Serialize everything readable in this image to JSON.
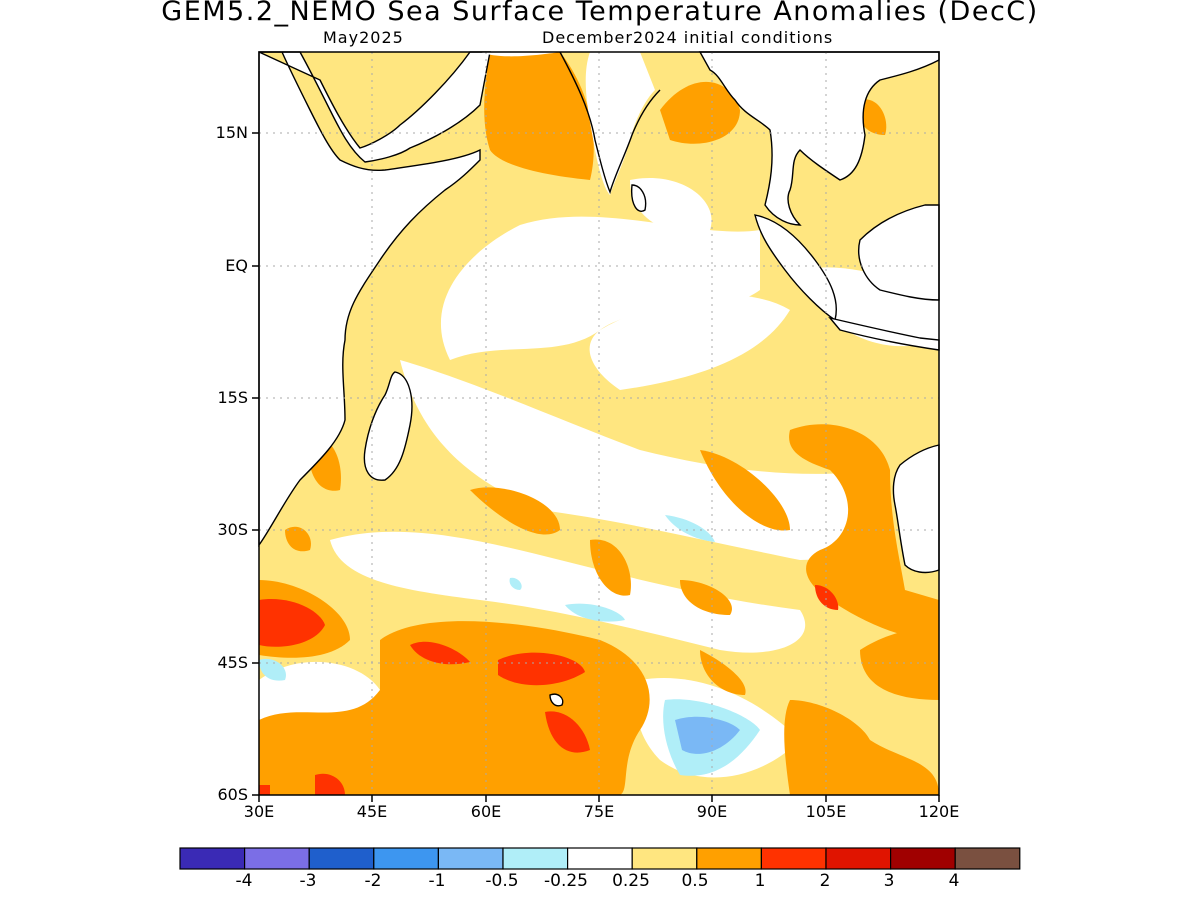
{
  "title": "GEM5.2_NEMO Sea Surface Temperature Anomalies (DecC)",
  "subtitle_left": "May2025",
  "subtitle_right": "December2024 initial conditions",
  "lat_labels": [
    "15N",
    "EQ",
    "15S",
    "30S",
    "45S",
    "60S"
  ],
  "lon_labels": [
    "30E",
    "45E",
    "60E",
    "75E",
    "90E",
    "105E",
    "120E"
  ],
  "colorbar": {
    "colors": [
      "#3a2ab5",
      "#7b6ee6",
      "#1f5fcc",
      "#3d96f0",
      "#7ab8f5",
      "#b0eef8",
      "#ffffff",
      "#ffe680",
      "#ffa000",
      "#ff3200",
      "#e01400",
      "#a00000",
      "#7a5040"
    ],
    "labels": [
      "-4",
      "-3",
      "-2",
      "-1",
      "-0.5",
      "-0.25",
      "0.25",
      "0.5",
      "1",
      "2",
      "3",
      "4"
    ]
  },
  "map": {
    "region": "Indian Ocean",
    "lon_range": [
      30,
      120
    ],
    "lat_range": [
      -60,
      24
    ],
    "variable": "Sea surface temperature anomaly",
    "units": "DecC"
  }
}
